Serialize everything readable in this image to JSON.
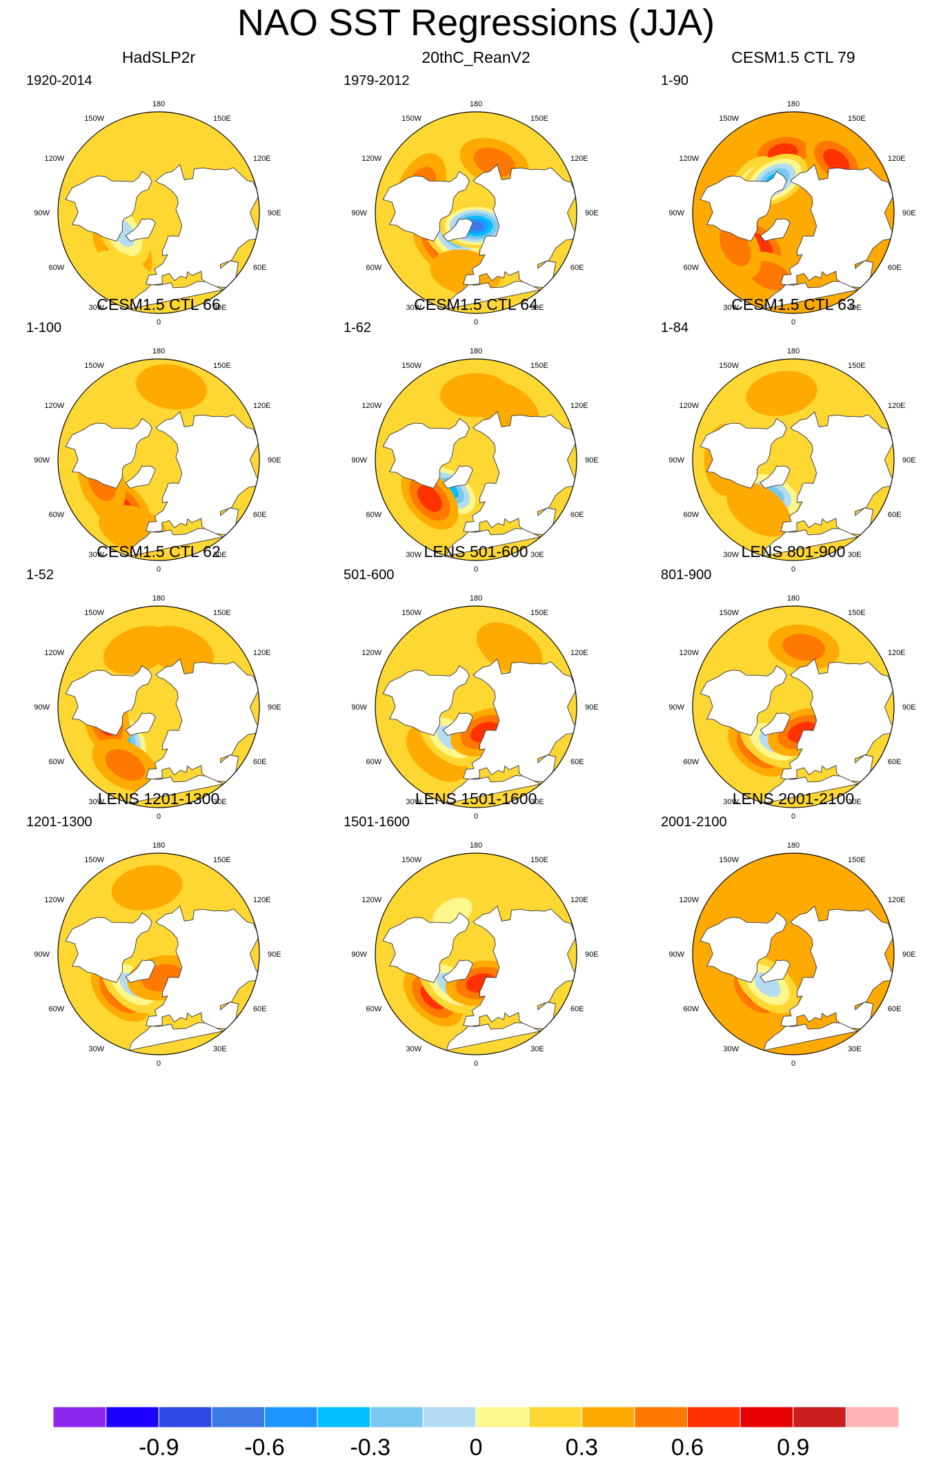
{
  "title": "NAO SST Regressions (JJA)",
  "lon_labels": [
    "180",
    "150E",
    "120E",
    "90E",
    "60E",
    "30E",
    "0",
    "30W",
    "60W",
    "90W",
    "120W",
    "150W"
  ],
  "colors": {
    "land": "#ffffff",
    "coast": "#444444",
    "ocean_default": "#b4dcf2"
  },
  "colorbar": {
    "colors": [
      "#8c28ee",
      "#1e00ff",
      "#2d4ae6",
      "#3b78e6",
      "#1e96ff",
      "#00beff",
      "#78c8f0",
      "#b4dcf2",
      "#fff68c",
      "#ffd732",
      "#ffaa00",
      "#ff7800",
      "#ff3200",
      "#e60000",
      "#c81e1e",
      "#ffb4b4"
    ],
    "tick_labels": [
      "-0.9",
      "-0.6",
      "-0.3",
      "0",
      "0.3",
      "0.6",
      "0.9"
    ]
  },
  "chart_data": {
    "type": "polar-stereographic-map-panels",
    "variable": "SST regression on NAO index",
    "season": "JJA",
    "levels": [
      -0.9,
      -0.8,
      -0.7,
      -0.6,
      -0.5,
      -0.4,
      -0.3,
      -0.2,
      -0.1,
      0,
      0.1,
      0.2,
      0.3,
      0.4,
      0.5,
      0.6,
      0.7,
      0.8,
      0.9
    ],
    "panels": [
      {
        "title": "HadSLP2r",
        "period": "1920-2014",
        "background": -0.05,
        "anomalies": [
          {
            "lon": -45,
            "lat": 52,
            "value": 0.2
          },
          {
            "lon": -60,
            "lat": 60,
            "value": -0.35
          },
          {
            "lon": -30,
            "lat": 35,
            "value": -0.1
          },
          {
            "lon": -160,
            "lat": 47,
            "value": -0.15
          }
        ]
      },
      {
        "title": "20thC_ReanV2",
        "period": "1979-2012",
        "background": -0.05,
        "anomalies": [
          {
            "lon": -45,
            "lat": 55,
            "value": 0.25
          },
          {
            "lon": -40,
            "lat": 65,
            "value": -0.4
          },
          {
            "lon": -150,
            "lat": 50,
            "value": -0.15
          },
          {
            "lon": -115,
            "lat": 45,
            "value": 0.2
          },
          {
            "lon": 160,
            "lat": 50,
            "value": 0.2
          },
          {
            "lon": 0,
            "lat": 80,
            "value": -0.7
          },
          {
            "lon": -10,
            "lat": 45,
            "value": 0.1
          }
        ]
      },
      {
        "title": "CESM1.5 CTL 79",
        "period": "1-90",
        "background": 0.05,
        "anomalies": [
          {
            "lon": -170,
            "lat": 45,
            "value": 0.35
          },
          {
            "lon": -120,
            "lat": 55,
            "value": -0.3
          },
          {
            "lon": -150,
            "lat": 62,
            "value": -0.5
          },
          {
            "lon": -45,
            "lat": 55,
            "value": 0.35
          },
          {
            "lon": -20,
            "lat": 40,
            "value": 0.2
          },
          {
            "lon": -60,
            "lat": 40,
            "value": 0.2
          },
          {
            "lon": 140,
            "lat": 40,
            "value": 0.3
          }
        ]
      },
      {
        "title": "CESM1.5 CTL 66",
        "period": "1-100",
        "background": -0.05,
        "anomalies": [
          {
            "lon": -40,
            "lat": 45,
            "value": 0.3
          },
          {
            "lon": -70,
            "lat": 45,
            "value": 0.2
          },
          {
            "lon": -20,
            "lat": 35,
            "value": 0.1
          },
          {
            "lon": 170,
            "lat": 35,
            "value": 0.1
          }
        ]
      },
      {
        "title": "CESM1.5 CTL 64",
        "period": "1-62",
        "background": -0.05,
        "anomalies": [
          {
            "lon": -40,
            "lat": 60,
            "value": -0.5
          },
          {
            "lon": -50,
            "lat": 45,
            "value": 0.3
          },
          {
            "lon": -180,
            "lat": 42,
            "value": 0.15
          },
          {
            "lon": 150,
            "lat": 45,
            "value": 0.15
          }
        ]
      },
      {
        "title": "CESM1.5 CTL 63",
        "period": "1-84",
        "background": -0.05,
        "anomalies": [
          {
            "lon": -30,
            "lat": 60,
            "value": -0.4
          },
          {
            "lon": -35,
            "lat": 45,
            "value": 0.15
          },
          {
            "lon": -170,
            "lat": 40,
            "value": 0.12
          },
          {
            "lon": -90,
            "lat": 40,
            "value": 0.1
          }
        ]
      },
      {
        "title": "CESM1.5 CTL 62",
        "period": "1-52",
        "background": -0.05,
        "anomalies": [
          {
            "lon": -50,
            "lat": 55,
            "value": -0.45
          },
          {
            "lon": -75,
            "lat": 50,
            "value": 0.35
          },
          {
            "lon": -30,
            "lat": 40,
            "value": 0.2
          },
          {
            "lon": -160,
            "lat": 45,
            "value": 0.12
          },
          {
            "lon": 160,
            "lat": 45,
            "value": 0.15
          }
        ]
      },
      {
        "title": "LENS 501-600",
        "period": "501-600",
        "background": -0.05,
        "anomalies": [
          {
            "lon": -40,
            "lat": 45,
            "value": 0.15
          },
          {
            "lon": -40,
            "lat": 60,
            "value": -0.3
          },
          {
            "lon": 20,
            "lat": 70,
            "value": 0.25
          },
          {
            "lon": 150,
            "lat": 40,
            "value": 0.12
          }
        ]
      },
      {
        "title": "LENS 801-900",
        "period": "801-900",
        "background": -0.05,
        "anomalies": [
          {
            "lon": -40,
            "lat": 50,
            "value": 0.3
          },
          {
            "lon": -30,
            "lat": 60,
            "value": -0.3
          },
          {
            "lon": 20,
            "lat": 70,
            "value": 0.3
          },
          {
            "lon": 170,
            "lat": 45,
            "value": 0.2
          }
        ]
      },
      {
        "title": "LENS 1201-1300",
        "period": "1201-1300",
        "background": -0.05,
        "anomalies": [
          {
            "lon": -45,
            "lat": 50,
            "value": 0.25
          },
          {
            "lon": -40,
            "lat": 60,
            "value": -0.3
          },
          {
            "lon": 10,
            "lat": 72,
            "value": 0.2
          },
          {
            "lon": -170,
            "lat": 40,
            "value": 0.15
          }
        ]
      },
      {
        "title": "LENS 1501-1600",
        "period": "1501-1600",
        "background": -0.05,
        "anomalies": [
          {
            "lon": -45,
            "lat": 45,
            "value": 0.25
          },
          {
            "lon": -40,
            "lat": 60,
            "value": -0.3
          },
          {
            "lon": 10,
            "lat": 68,
            "value": 0.35
          },
          {
            "lon": -150,
            "lat": 55,
            "value": -0.2
          }
        ]
      },
      {
        "title": "LENS 2001-2100",
        "period": "2001-2100",
        "background": 0.05,
        "anomalies": [
          {
            "lon": -45,
            "lat": 50,
            "value": 0.3
          },
          {
            "lon": -40,
            "lat": 60,
            "value": -0.35
          },
          {
            "lon": -160,
            "lat": 45,
            "value": 0.12
          },
          {
            "lon": 170,
            "lat": 45,
            "value": 0.1
          }
        ]
      }
    ]
  }
}
